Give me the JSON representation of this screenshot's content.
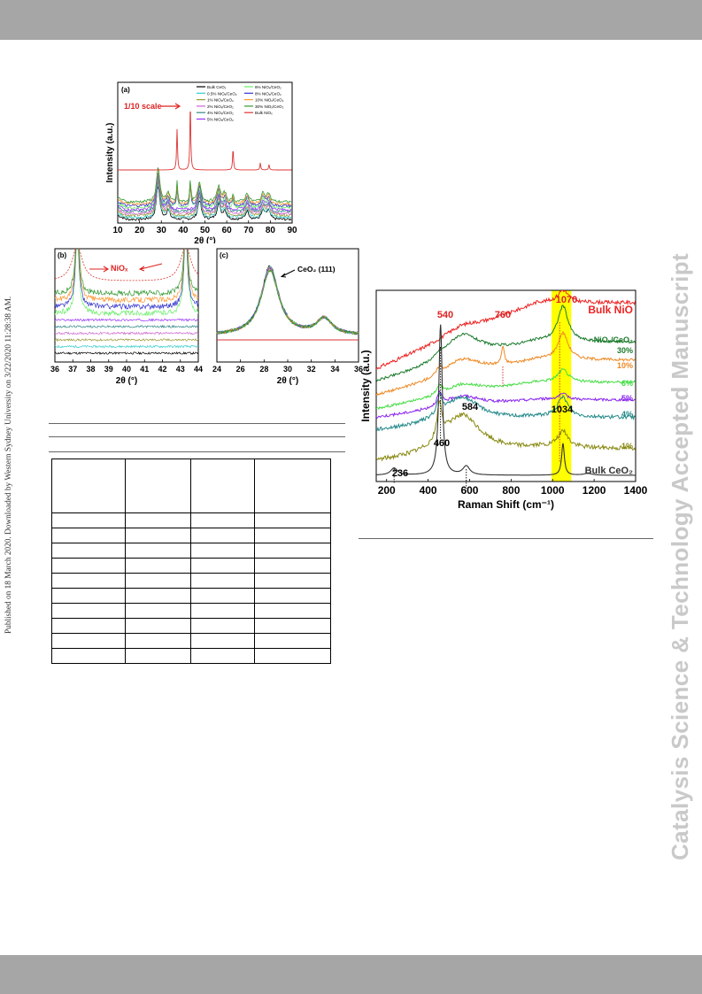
{
  "page": {
    "header_band_color": "#a6a6a6",
    "footer_band_color": "#a6a6a6",
    "side_note": "Published on 18 March 2020. Downloaded by Western Sydney University on 3/22/2020 11:28:38 AM.",
    "watermark": "Catalysis Science & Technology Accepted Manuscript"
  },
  "chart_data": [
    {
      "panel": "(a)",
      "type": "line",
      "xlabel": "2θ (°)",
      "ylabel": "Intensity (a.u.)",
      "xlim": [
        10,
        90
      ],
      "xticks": [
        "10",
        "20",
        "30",
        "40",
        "50",
        "60",
        "70",
        "80",
        "90"
      ],
      "annotation": "1/10 scale",
      "legend": [
        {
          "name": "Bulk CeO₂",
          "color": "#000000"
        },
        {
          "name": "0.5% NiOₓ/CeO₂",
          "color": "#33cccc"
        },
        {
          "name": "1% NiOₓ/CeO₂",
          "color": "#999933"
        },
        {
          "name": "2% NiOₓ/CeO₂",
          "color": "#cc66cc"
        },
        {
          "name": "4% NiOₓ/CeO₂",
          "color": "#338888"
        },
        {
          "name": "5% NiOₓ/CeO₂",
          "color": "#9933ff"
        },
        {
          "name": "6% NiOₓ/CeO₂",
          "color": "#66ee66"
        },
        {
          "name": "8% NiOₓ/CeO₂",
          "color": "#3333cc"
        },
        {
          "name": "10% NiOₓ/CeO₂",
          "color": "#ff9933"
        },
        {
          "name": "30% NiOₓ/CeO₂",
          "color": "#339933"
        },
        {
          "name": "Bulk NiOₓ",
          "color": "#dd3333"
        }
      ],
      "peaks_ceo2": [
        28.5,
        33.1,
        47.5,
        56.3,
        59.1,
        69.4,
        76.7,
        79.1
      ],
      "peaks_nio": [
        37.2,
        43.3,
        62.9,
        75.4,
        79.4
      ]
    },
    {
      "panel": "(b)",
      "type": "line",
      "xlabel": "2θ (°)",
      "xlim": [
        36,
        44
      ],
      "xticks": [
        "36",
        "37",
        "38",
        "39",
        "40",
        "41",
        "42",
        "43",
        "44"
      ],
      "annotation": "NiOₓ"
    },
    {
      "panel": "(c)",
      "type": "line",
      "xlabel": "2θ (°)",
      "xlim": [
        24,
        36
      ],
      "xticks": [
        "24",
        "26",
        "28",
        "30",
        "32",
        "34",
        "36"
      ],
      "annotation": "CeO₂ (111)"
    },
    {
      "type": "line",
      "xlabel": "Raman Shift (cm⁻¹)",
      "ylabel": "Intensity (a.u.)",
      "xlim": [
        150,
        1400
      ],
      "xticks": [
        "200",
        "400",
        "600",
        "800",
        "1000",
        "1200",
        "1400"
      ],
      "highlight_band": [
        995,
        1090
      ],
      "highlight_color": "#ffff00",
      "series_labels": [
        {
          "label": "Bulk NiO",
          "color": "#ee2222"
        },
        {
          "label": "NiOₓ/CeO₂",
          "color": "#1a7a2a"
        },
        {
          "label": "30%",
          "color": "#1a7a2a"
        },
        {
          "label": "10%",
          "color": "#ee8822"
        },
        {
          "label": "6%",
          "color": "#44dd44"
        },
        {
          "label": "5%",
          "color": "#8822ee"
        },
        {
          "label": "4%",
          "color": "#228888"
        },
        {
          "label": "1%",
          "color": "#888811"
        },
        {
          "label": "Bulk CeO₂",
          "color": "#333333"
        }
      ],
      "peak_labels": [
        {
          "x": 540,
          "text": "540",
          "color": "#dd2222"
        },
        {
          "x": 760,
          "text": "760",
          "color": "#dd2222"
        },
        {
          "x": 1070,
          "text": "1070",
          "color": "#dd2222"
        },
        {
          "x": 1034,
          "text": "1034",
          "color": "#000000"
        },
        {
          "x": 460,
          "text": "460",
          "color": "#000000"
        },
        {
          "x": 584,
          "text": "584",
          "color": "#000000"
        },
        {
          "x": 236,
          "text": "236",
          "color": "#000000"
        }
      ]
    }
  ],
  "table": {
    "rows": 11,
    "cols": 4,
    "cells": []
  }
}
